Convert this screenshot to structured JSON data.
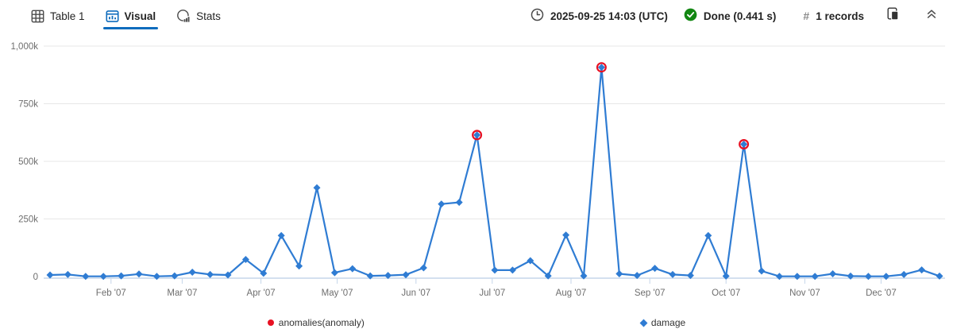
{
  "toolbar": {
    "tabs": [
      {
        "label": "Table 1",
        "icon": "table-grid-icon",
        "active": false
      },
      {
        "label": "Visual",
        "icon": "visual-chart-icon",
        "active": true
      },
      {
        "label": "Stats",
        "icon": "stats-pie-icon",
        "active": false
      }
    ],
    "timestamp": "2025-09-25 14:03 (UTC)",
    "status_text": "Done (0.441 s)",
    "records_hash": "#",
    "records_text": "1 records"
  },
  "colors": {
    "accent_blue": "#0f6cbd",
    "series_blue": "#2f7cd3",
    "anomaly_red": "#e81123",
    "done_green": "#128712",
    "gridline": "#e7e7e7",
    "axis_line": "#c5d6ea",
    "axis_text": "#6e6e6e"
  },
  "chart_data": {
    "type": "line",
    "title": "",
    "xlabel": "",
    "ylabel": "",
    "ylim": [
      0,
      1000000
    ],
    "grid": "horizontal",
    "legend_position": "bottom",
    "x_inferred_start": "2007-01-08",
    "x_inferred_step_days": 7,
    "series": [
      {
        "name": "damage",
        "color": "#2f7cd3",
        "marker": "diamond",
        "values": [
          7000,
          9000,
          1000,
          1000,
          3000,
          11000,
          1000,
          3000,
          19000,
          9000,
          7000,
          74000,
          14000,
          178000,
          46000,
          385000,
          17000,
          34000,
          3000,
          5000,
          8000,
          38000,
          315000,
          322000,
          614000,
          28000,
          28000,
          69000,
          3000,
          180000,
          3000,
          908000,
          12000,
          5000,
          36000,
          9000,
          5000,
          178000,
          2000,
          574000,
          24000,
          1000,
          1000,
          1000,
          12000,
          2000,
          1000,
          1000,
          9000,
          29000,
          2000
        ]
      }
    ],
    "anomalies": {
      "name": "anomalies(anomaly)",
      "color": "#e81123",
      "marker": "circle",
      "point_indices": [
        24,
        31,
        39
      ],
      "point_values": [
        614000,
        908000,
        574000
      ]
    },
    "y_ticks": [
      {
        "value": 0,
        "label": "0"
      },
      {
        "value": 250000,
        "label": "250k"
      },
      {
        "value": 500000,
        "label": "500k"
      },
      {
        "value": 750000,
        "label": "750k"
      },
      {
        "value": 1000000,
        "label": "1,000k"
      }
    ],
    "x_ticks": [
      {
        "label": "Feb '07",
        "day_of_year": 31
      },
      {
        "label": "Mar '07",
        "day_of_year": 59
      },
      {
        "label": "Apr '07",
        "day_of_year": 90
      },
      {
        "label": "May '07",
        "day_of_year": 120
      },
      {
        "label": "Jun '07",
        "day_of_year": 151
      },
      {
        "label": "Jul '07",
        "day_of_year": 181
      },
      {
        "label": "Aug '07",
        "day_of_year": 212
      },
      {
        "label": "Sep '07",
        "day_of_year": 243
      },
      {
        "label": "Oct '07",
        "day_of_year": 273
      },
      {
        "label": "Nov '07",
        "day_of_year": 304
      },
      {
        "label": "Dec '07",
        "day_of_year": 334
      }
    ]
  },
  "legend": {
    "items": [
      {
        "label": "anomalies(anomaly)",
        "color": "#e81123",
        "marker": "circle"
      },
      {
        "label": "damage",
        "color": "#2f7cd3",
        "marker": "diamond"
      }
    ]
  }
}
